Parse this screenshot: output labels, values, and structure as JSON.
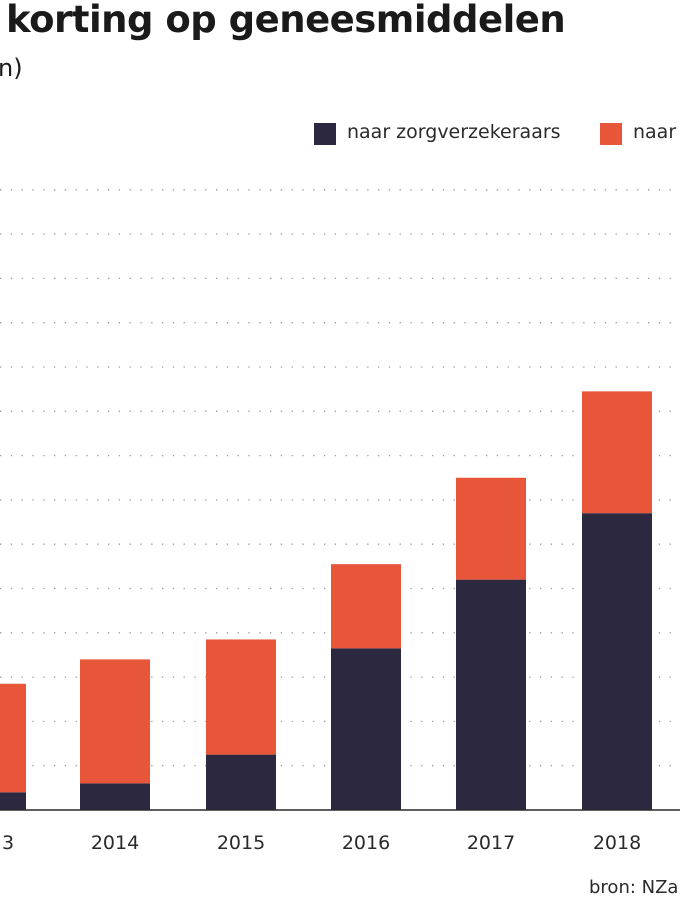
{
  "chart_data": {
    "type": "bar",
    "stacked": true,
    "title": "korting op geneesmiddelen",
    "subtitle": "n)",
    "categories": [
      "3",
      "2014",
      "2015",
      "2016",
      "2017",
      "2018"
    ],
    "series": [
      {
        "name": "naar zorgverzekeraars",
        "color": "#2b2840",
        "values": [
          0.4,
          0.6,
          1.25,
          3.65,
          5.2,
          6.7
        ]
      },
      {
        "name": "naar",
        "color": "#e8563a",
        "values": [
          2.45,
          2.8,
          2.6,
          1.9,
          2.3,
          2.75
        ]
      }
    ],
    "ylim": [
      0,
      14
    ],
    "grid": true,
    "legend_position": "top-right"
  },
  "source": "bron: NZa,"
}
